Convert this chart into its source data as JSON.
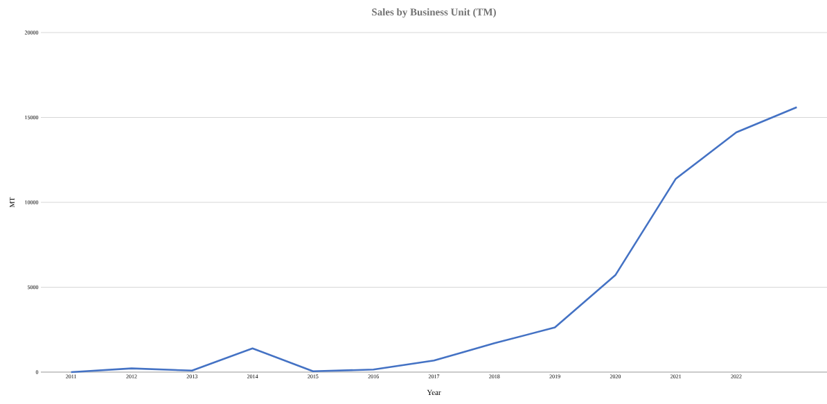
{
  "chart_data": {
    "type": "line",
    "title": "Sales by Business Unit  (TM)",
    "xlabel": "Year",
    "ylabel": "MT",
    "categories": [
      "2011",
      "2012",
      "2013",
      "2014",
      "2015",
      "2016",
      "2017",
      "2018",
      "2019",
      "2020",
      "2021",
      "2022",
      null
    ],
    "values": [
      0,
      220,
      90,
      1400,
      50,
      150,
      680,
      1700,
      2630,
      5710,
      11390,
      14120,
      15600
    ],
    "color": "#4472c4",
    "ylim": [
      0,
      20000
    ],
    "yticks": [
      0,
      5000,
      10000,
      15000,
      20000
    ],
    "grid": "y",
    "marker": "none",
    "line_style": "solid"
  }
}
